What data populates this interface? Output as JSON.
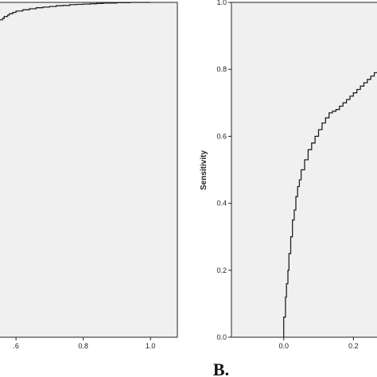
{
  "colors": {
    "plot_bg": "#f0f0f0",
    "frame": "#222222",
    "curve": "#222222",
    "page": "#ffffff"
  },
  "panel_b_label": "B.",
  "chart_data": [
    {
      "type": "line",
      "panel": "A",
      "xlabel": "",
      "ylabel": "",
      "xlim": [
        0.55,
        1.08
      ],
      "ylim": [
        0.0,
        1.0
      ],
      "x_ticks": [
        {
          "value": 0.6,
          "label": ".6"
        },
        {
          "value": 0.8,
          "label": "0.8"
        },
        {
          "value": 1.0,
          "label": "1.0"
        }
      ],
      "y_ticks": [],
      "grid": false,
      "series": [
        {
          "x": [
            0.55,
            0.56,
            0.565,
            0.575,
            0.58,
            0.59,
            0.6,
            0.62,
            0.64,
            0.66,
            0.68,
            0.7,
            0.72,
            0.74,
            0.76,
            0.78,
            0.8,
            0.82,
            0.84,
            0.86,
            0.88,
            0.9,
            0.92,
            0.94,
            0.96,
            0.98,
            1.0
          ],
          "y": [
            0.948,
            0.952,
            0.958,
            0.962,
            0.966,
            0.97,
            0.974,
            0.978,
            0.981,
            0.984,
            0.986,
            0.988,
            0.99,
            0.991,
            0.993,
            0.994,
            0.995,
            0.996,
            0.997,
            0.998,
            0.998,
            0.999,
            0.999,
            1.0,
            1.0,
            1.0,
            1.0
          ]
        }
      ]
    },
    {
      "type": "line",
      "panel": "B",
      "xlabel": "",
      "ylabel": "Sensitivity",
      "xlim": [
        -0.15,
        0.27
      ],
      "ylim": [
        0.0,
        1.0
      ],
      "x_ticks": [
        {
          "value": 0.0,
          "label": "0.0"
        },
        {
          "value": 0.2,
          "label": "0.2"
        }
      ],
      "y_ticks": [
        {
          "value": 0.0,
          "label": "0.0"
        },
        {
          "value": 0.2,
          "label": "0.2"
        },
        {
          "value": 0.4,
          "label": "0.4"
        },
        {
          "value": 0.6,
          "label": "0.6"
        },
        {
          "value": 0.8,
          "label": "0.8"
        },
        {
          "value": 1.0,
          "label": "1.0"
        }
      ],
      "grid": false,
      "series": [
        {
          "x": [
            0.0,
            0.0,
            0.005,
            0.008,
            0.012,
            0.015,
            0.02,
            0.025,
            0.03,
            0.035,
            0.04,
            0.045,
            0.05,
            0.06,
            0.07,
            0.08,
            0.09,
            0.1,
            0.11,
            0.12,
            0.13,
            0.14,
            0.15,
            0.16,
            0.17,
            0.18,
            0.19,
            0.2,
            0.21,
            0.22,
            0.23,
            0.24,
            0.25,
            0.26,
            0.27
          ],
          "y": [
            0.0,
            0.06,
            0.12,
            0.16,
            0.2,
            0.25,
            0.3,
            0.35,
            0.38,
            0.42,
            0.45,
            0.47,
            0.5,
            0.53,
            0.56,
            0.58,
            0.6,
            0.62,
            0.64,
            0.655,
            0.67,
            0.675,
            0.68,
            0.69,
            0.7,
            0.71,
            0.72,
            0.73,
            0.74,
            0.75,
            0.76,
            0.77,
            0.78,
            0.79,
            0.8
          ]
        }
      ]
    }
  ]
}
